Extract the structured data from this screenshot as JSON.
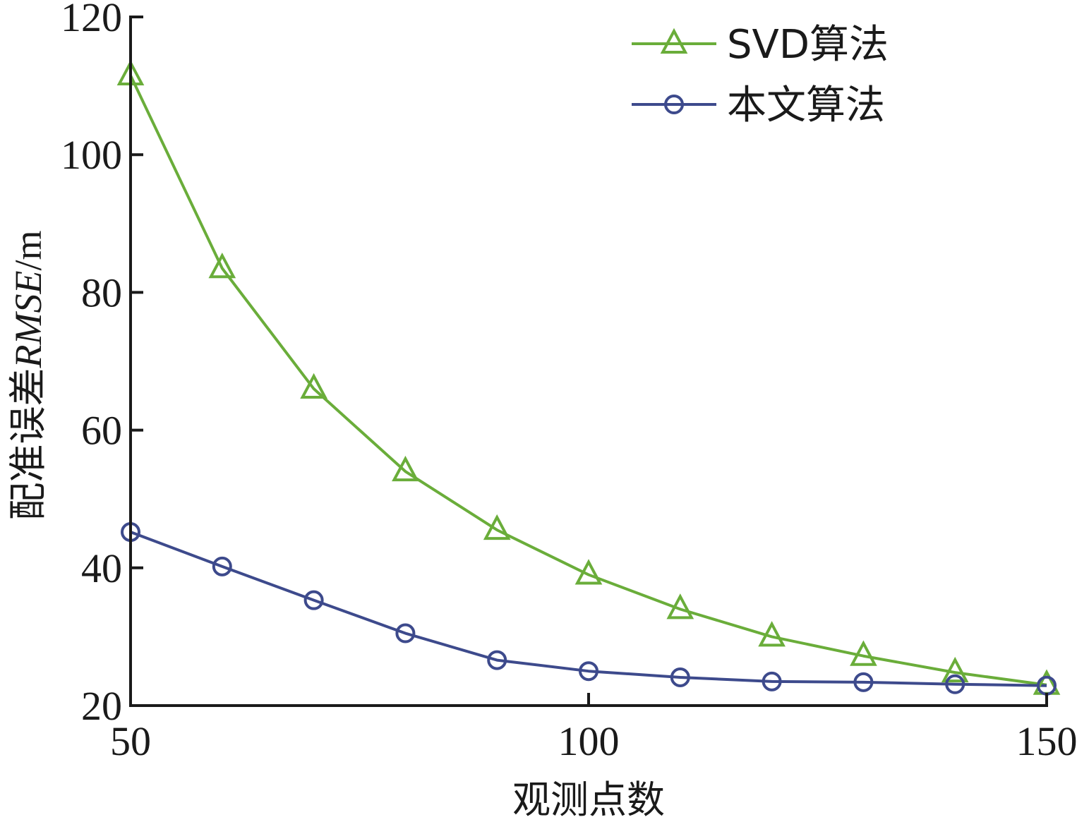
{
  "chart_data": {
    "type": "line",
    "xlabel": "观测点数",
    "ylabel_parts": [
      {
        "text": "配准误差",
        "italic": false
      },
      {
        "text": "RMSE",
        "italic": true
      },
      {
        "text": "/m",
        "italic": false
      }
    ],
    "x": [
      50,
      60,
      70,
      80,
      90,
      100,
      110,
      120,
      130,
      140,
      150
    ],
    "xlim": [
      50,
      150
    ],
    "ylim": [
      20,
      120
    ],
    "xticks": [
      50,
      100,
      150
    ],
    "yticks": [
      20,
      40,
      60,
      80,
      100,
      120
    ],
    "grid": false,
    "legend_position": "top-right",
    "series": [
      {
        "name": "SVD算法",
        "color": "#6aad3a",
        "marker": "triangle",
        "values": [
          111.5,
          83.5,
          66,
          54,
          45.5,
          39,
          34,
          30,
          27.2,
          24.8,
          23
        ]
      },
      {
        "name": "本文算法",
        "color": "#3d4a8c",
        "marker": "circle",
        "values": [
          45.2,
          40.2,
          35.3,
          30.5,
          26.6,
          25,
          24.1,
          23.5,
          23.4,
          23.1,
          22.9
        ]
      }
    ]
  }
}
